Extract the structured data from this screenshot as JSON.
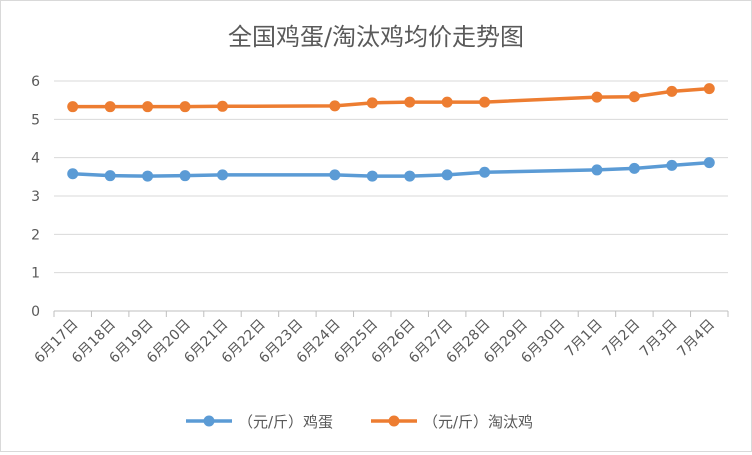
{
  "chart_data": {
    "type": "line",
    "title": "全国鸡蛋/淘汰鸡均价走势图",
    "xlabel": "",
    "ylabel": "",
    "ylim": [
      0,
      6
    ],
    "yticks": [
      "0",
      "1",
      "2",
      "3",
      "4",
      "5",
      "6"
    ],
    "grid": true,
    "legend_position": "bottom",
    "categories": [
      "6月17日",
      "6月18日",
      "6月19日",
      "6月20日",
      "6月21日",
      "6月22日",
      "6月23日",
      "6月24日",
      "6月25日",
      "6月26日",
      "6月27日",
      "6月28日",
      "6月29日",
      "6月30日",
      "7月1日",
      "7月2日",
      "7月3日",
      "7月4日"
    ],
    "series": [
      {
        "name": "（元/斤）鸡蛋",
        "color": "#5b9bd5",
        "values": [
          3.58,
          3.53,
          3.52,
          3.53,
          3.55,
          null,
          null,
          3.55,
          3.52,
          3.52,
          3.55,
          3.62,
          null,
          null,
          3.68,
          3.72,
          3.8,
          3.87
        ]
      },
      {
        "name": "（元/斤）淘汰鸡",
        "color": "#ed7d31",
        "values": [
          5.33,
          5.33,
          5.33,
          5.33,
          5.34,
          null,
          null,
          5.35,
          5.43,
          5.45,
          5.45,
          5.45,
          null,
          null,
          5.58,
          5.59,
          5.73,
          5.8
        ]
      }
    ]
  }
}
